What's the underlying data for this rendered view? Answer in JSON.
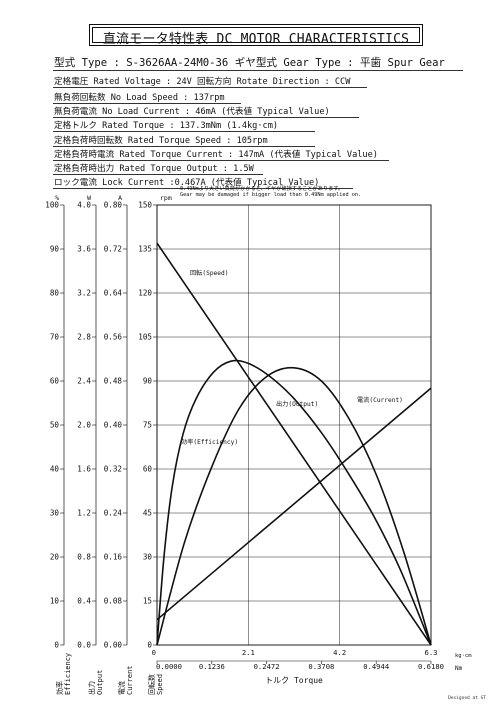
{
  "header": {
    "title": "直流モータ特性表 DC MOTOR CHARACTERISTICS"
  },
  "specs": {
    "model": "型式 Type : S-3626AA-24M0-36   ギヤ型式 Gear Type : 平歯  Spur Gear",
    "rated_voltage": "定格電圧 Rated Voltage : 24V   回転方向 Rotate Direction : CCW",
    "no_load_speed": "無負荷回転数 No Load Speed : 137rpm",
    "no_load_current": "無負荷電流 No Load Current : 46mA (代表値 Typical Value)",
    "rated_torque": "定格トルク Rated Torque : 137.3mNm (1.4kg·cm)",
    "rated_torque_speed": "定格負荷時回転数 Rated Torque Speed : 105rpm",
    "rated_torque_current": "定格負荷時電流 Rated Torque Current : 147mA (代表値 Typical Value)",
    "rated_torque_output": "定格負荷時出力 Rated Torque Output : 1.5W",
    "lock_current": "ロック電流 Lock Current :0.467A (代表値 Typical Value)",
    "warning_jp": "0.49Nmより大きい負荷がかかると、ギヤが破損することがあります。",
    "warning_en": "Gear may be damaged if bigger load than 0.49Nm applied on."
  },
  "footer": {
    "designed": "Designed at GT"
  },
  "chart_data": {
    "type": "line",
    "xlabel": "トルク Torque",
    "x_unit_top": "kg·cm",
    "x_unit_bottom": "Nm",
    "x_ticks_top": [
      "0",
      "2.1",
      "4.2",
      "6.3"
    ],
    "x_ticks_bottom": [
      "0.0000",
      "0.1236",
      "0.2472",
      "0.3708",
      "0.4944",
      "0.6180"
    ],
    "xlim_kgcm": [
      0,
      6.3
    ],
    "axes": [
      {
        "id": "efficiency",
        "unit": "%",
        "label": "効率 Efficiency",
        "ticks": [
          "0",
          "10",
          "20",
          "30",
          "40",
          "50",
          "60",
          "70",
          "80",
          "90",
          "100"
        ],
        "ylim": [
          0,
          100
        ]
      },
      {
        "id": "output",
        "unit": "W",
        "label": "出力 Output",
        "ticks": [
          "0.0",
          "0.4",
          "0.8",
          "1.2",
          "1.6",
          "2.0",
          "2.4",
          "2.8",
          "3.2",
          "3.6",
          "4.0"
        ],
        "ylim": [
          0,
          4.0
        ]
      },
      {
        "id": "current",
        "unit": "A",
        "label": "電流 Current",
        "ticks": [
          "0.00",
          "0.08",
          "0.16",
          "0.24",
          "0.32",
          "0.40",
          "0.48",
          "0.56",
          "0.64",
          "0.72",
          "0.80"
        ],
        "ylim": [
          0,
          0.8
        ]
      },
      {
        "id": "speed",
        "unit": "rpm",
        "label": "回転数 Speed",
        "ticks": [
          "0",
          "15",
          "30",
          "45",
          "60",
          "75",
          "90",
          "105",
          "120",
          "135",
          "150"
        ],
        "ylim": [
          0,
          150
        ]
      }
    ],
    "series": [
      {
        "name": "回転(Speed)",
        "axis": "speed",
        "x": [
          0,
          6.3
        ],
        "y": [
          137,
          0
        ]
      },
      {
        "name": "電流(Current)",
        "axis": "current",
        "x": [
          0,
          6.3
        ],
        "y": [
          0.046,
          0.467
        ]
      },
      {
        "name": "出力(Output)",
        "axis": "output",
        "x": [
          0,
          0.63,
          1.26,
          1.89,
          2.52,
          3.15,
          3.78,
          4.41,
          5.04,
          5.67,
          6.3
        ],
        "y": [
          0,
          0.93,
          1.62,
          2.15,
          2.44,
          2.52,
          2.4,
          2.06,
          1.55,
          0.85,
          0
        ]
      },
      {
        "name": "効率(Efficiency)",
        "axis": "efficiency",
        "x": [
          0,
          0.16,
          0.35,
          0.6,
          0.9,
          1.3,
          1.7,
          2.1,
          2.6,
          3.15,
          3.8,
          4.4,
          5.0,
          5.6,
          6.3
        ],
        "y": [
          0,
          20,
          36,
          48,
          56,
          62,
          64.5,
          64,
          61,
          56,
          48,
          39,
          29,
          17,
          0
        ]
      }
    ],
    "grid": true
  }
}
